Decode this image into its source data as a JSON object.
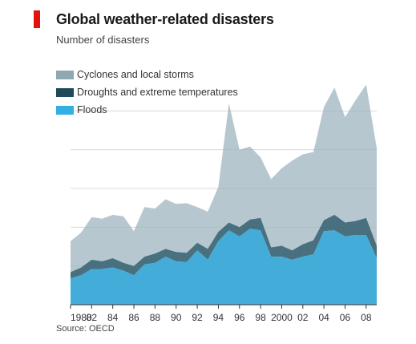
{
  "header": {
    "title": "Global weather-related disasters",
    "subtitle": "Number of disasters"
  },
  "footer": {
    "source": "Source: OECD"
  },
  "colors": {
    "cyclones": "#9fb4bf",
    "droughts": "#3e6878",
    "floods": "#3aa8d6",
    "brand_red": "#e3120b",
    "grid": "#d9d9d9"
  },
  "chart_data": {
    "type": "area",
    "stacked": true,
    "title": "Global weather-related disasters",
    "subtitle": "Number of disasters",
    "xlabel": "",
    "ylabel": "",
    "x": [
      1980,
      1981,
      1982,
      1983,
      1984,
      1985,
      1986,
      1987,
      1988,
      1989,
      1990,
      1991,
      1992,
      1993,
      1994,
      1995,
      1996,
      1997,
      1998,
      1999,
      2000,
      2001,
      2002,
      2003,
      2004,
      2005,
      2006,
      2007,
      2008,
      2009
    ],
    "x_tick_labels": [
      "1980",
      "82",
      "84",
      "86",
      "88",
      "90",
      "92",
      "94",
      "96",
      "98",
      "2000",
      "02",
      "04",
      "06",
      "08"
    ],
    "ylim": [
      0,
      300
    ],
    "legend_position": "top-left",
    "series": [
      {
        "name": "Floods",
        "values": [
          34,
          38,
          46,
          46,
          48,
          44,
          38,
          52,
          54,
          62,
          56,
          55,
          70,
          58,
          82,
          96,
          88,
          98,
          96,
          62,
          62,
          58,
          62,
          65,
          95,
          96,
          88,
          90,
          90,
          60
        ]
      },
      {
        "name": "Droughts and extreme temperatures",
        "values": [
          8,
          10,
          12,
          10,
          12,
          10,
          12,
          10,
          12,
          10,
          12,
          12,
          10,
          14,
          12,
          10,
          12,
          12,
          16,
          12,
          14,
          12,
          16,
          18,
          14,
          20,
          18,
          18,
          22,
          16
        ]
      },
      {
        "name": "Cyclones and local storms",
        "values": [
          40,
          45,
          55,
          55,
          56,
          60,
          45,
          64,
          58,
          64,
          62,
          64,
          46,
          48,
          58,
          154,
          100,
          94,
          78,
          88,
          100,
          116,
          116,
          114,
          146,
          164,
          136,
          156,
          172,
          126
        ]
      }
    ]
  }
}
